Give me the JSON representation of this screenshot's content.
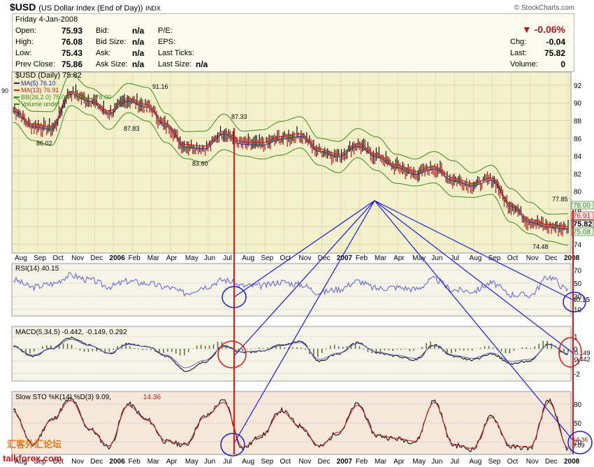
{
  "header": {
    "symbol": "$USD",
    "description": "(US Dollar Index (End of Day))",
    "exchange": "INDX",
    "brand": "© StockCharts.com"
  },
  "quote": {
    "date": "Friday   4-Jan-2008",
    "labels": {
      "open": "Open:",
      "high": "High:",
      "low": "Low:",
      "prev_close": "Prev Close:",
      "bid": "Bid:",
      "bid_size": "Bid Size:",
      "ask": "Ask:",
      "ask_size": "Ask Size:",
      "pe": "P/E:",
      "eps": "EPS:",
      "last_ticks": "Last Ticks:",
      "last_size": "Last Size:",
      "chg": "Chg:",
      "last": "Last:",
      "volume": "Volume:"
    },
    "open": "75.93",
    "high": "76.08",
    "low": "75.43",
    "prev_close": "75.86",
    "bid": "n/a",
    "bid_size": "n/a",
    "ask": "n/a",
    "ask_size": "n/a",
    "last_size": "n/a",
    "change_pct": "▼ -0.06%",
    "chg": "-0.04",
    "last": "75.82",
    "volume": "0"
  },
  "colors": {
    "price_panel_bg": "#f3f1cc",
    "indicator_bg": "#f5f4e6",
    "sto_bg": "#f5e8da",
    "ma5": "#1b1fa8",
    "ma13": "#d01818",
    "bb": "#3b8a1e",
    "rsi": "#6a6ad8",
    "annot_red": "#ee1111",
    "annot_blue": "#1a1ae0",
    "bar_up": "#111111",
    "bar_down": "#c81010"
  },
  "chart_data": [
    {
      "type": "line",
      "panel": "price",
      "title": "$USD (Daily) 75.82",
      "legend": [
        "MA(5) 76.10",
        "MA(13) 76.91",
        "BB(26,2.0) 75.08 - 76.54 - 78.00",
        "Volume undef"
      ],
      "x_tick_labels": [
        "Aug",
        "Sep",
        "Oct",
        "Nov",
        "Dec",
        "2006",
        "Feb",
        "Mar",
        "Apr",
        "May",
        "Jun",
        "Jul",
        "Aug",
        "Sep",
        "Oct",
        "Nov",
        "Dec",
        "2007",
        "Feb",
        "Mar",
        "Apr",
        "May",
        "Jun",
        "Jul",
        "Aug",
        "Sep",
        "Oct",
        "Nov",
        "Dec",
        "2008"
      ],
      "y_ticks": [
        74,
        76,
        78,
        80,
        82,
        84,
        86,
        88,
        90,
        92
      ],
      "ylim": [
        73,
        93.5
      ],
      "left_label": "90",
      "annotations": [
        "86.02",
        "91.16",
        "87.83",
        "83.60",
        "87.33",
        "77.85",
        "74.48"
      ],
      "right_labels": [
        "78.00",
        "76.91",
        "75.82",
        "75.08"
      ],
      "x": [
        "Aug",
        "Sep",
        "Oct",
        "Nov",
        "Dec",
        "2006",
        "Feb",
        "Mar",
        "Apr",
        "May",
        "Jun",
        "Jul",
        "Aug",
        "Sep",
        "Oct",
        "Nov",
        "Dec",
        "2007",
        "Feb",
        "Mar",
        "Apr",
        "May",
        "Jun",
        "Jul",
        "Aug",
        "Sep",
        "Oct",
        "Nov",
        "Dec",
        "2008"
      ],
      "close": [
        89.2,
        87.4,
        87.1,
        91.1,
        90.3,
        88.9,
        90.3,
        89.6,
        87.4,
        85.1,
        84.9,
        86.6,
        85.4,
        85.3,
        86.0,
        86.3,
        84.6,
        84.0,
        85.2,
        84.0,
        82.8,
        82.0,
        82.6,
        81.3,
        80.7,
        81.3,
        78.4,
        76.6,
        76.0,
        75.8
      ]
    },
    {
      "type": "line",
      "panel": "rsi",
      "title": "RSI(14) 40.15",
      "y_ticks": [
        10,
        30,
        50,
        70
      ],
      "ylim": [
        0,
        80
      ],
      "right_label": "40.15",
      "values": [
        55,
        44,
        49,
        62,
        55,
        45,
        53,
        50,
        44,
        35,
        45,
        55,
        46,
        46,
        52,
        48,
        36,
        41,
        53,
        42,
        44,
        41,
        56,
        40,
        38,
        50,
        33,
        32,
        60,
        40
      ]
    },
    {
      "type": "line",
      "panel": "macd",
      "title": "MACD(5,34,5) -0.442, -0.149, 0.292",
      "y_ticks": [
        -2,
        -1,
        0,
        1
      ],
      "ylim": [
        -2.6,
        1.8
      ],
      "right_labels": [
        "-0.149",
        "-0.442"
      ],
      "values": [
        0.2,
        -0.6,
        0.0,
        0.9,
        0.3,
        -0.4,
        0.4,
        0.2,
        -0.6,
        -1.8,
        -1.1,
        0.2,
        -0.3,
        -0.2,
        0.3,
        0.6,
        -1.0,
        -0.4,
        0.5,
        -0.3,
        -0.6,
        -0.9,
        0.3,
        -0.6,
        -0.9,
        -0.4,
        -1.2,
        -1.0,
        0.4,
        -0.44
      ]
    },
    {
      "type": "line",
      "panel": "slow_sto",
      "title": "Slow STO %K(14) %D(3) 9.09,",
      "title_d_value": "14.36",
      "y_ticks": [
        20,
        50,
        80
      ],
      "ylim": [
        0,
        100
      ],
      "right_labels": [
        "14.36",
        "9.09"
      ],
      "values": [
        70,
        15,
        55,
        88,
        40,
        12,
        80,
        55,
        20,
        15,
        60,
        85,
        10,
        30,
        70,
        45,
        12,
        35,
        80,
        30,
        25,
        20,
        85,
        15,
        8,
        60,
        12,
        10,
        85,
        9
      ]
    }
  ],
  "watermark": {
    "site_cn": "汇客外汇论坛",
    "site": "talkforex.com"
  }
}
